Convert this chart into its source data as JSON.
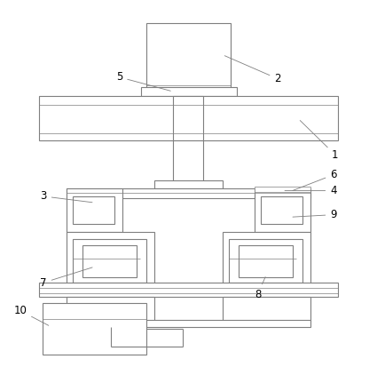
{
  "bg_color": "#ffffff",
  "line_color": "#7f7f7f",
  "line_width": 0.8,
  "thin_line": 0.5,
  "fig_width": 4.25,
  "fig_height": 4.22,
  "label_fontsize": 8.5
}
